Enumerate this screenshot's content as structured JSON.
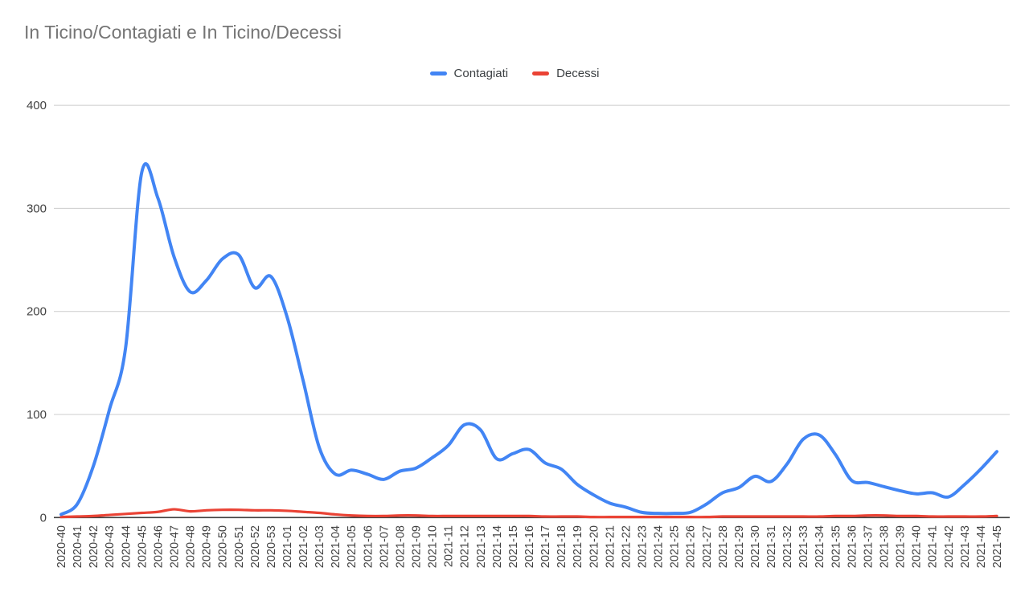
{
  "chart_data": {
    "type": "line",
    "title": "In Ticino/Contagiati e In Ticino/Decessi",
    "xlabel": "",
    "ylabel": "",
    "ylim": [
      0,
      400
    ],
    "yticks": [
      0,
      100,
      200,
      300,
      400
    ],
    "grid": true,
    "legend_position": "top",
    "smooth": true,
    "categories": [
      "2020-40",
      "2020-41",
      "2020-42",
      "2020-43",
      "2020-44",
      "2020-45",
      "2020-46",
      "2020-47",
      "2020-48",
      "2020-49",
      "2020-50",
      "2020-51",
      "2020-52",
      "2020-53",
      "2021-01",
      "2021-02",
      "2021-03",
      "2021-04",
      "2021-05",
      "2021-06",
      "2021-07",
      "2021-08",
      "2021-09",
      "2021-10",
      "2021-11",
      "2021-12",
      "2021-13",
      "2021-14",
      "2021-15",
      "2021-16",
      "2021-17",
      "2021-18",
      "2021-19",
      "2021-20",
      "2021-21",
      "2021-22",
      "2021-23",
      "2021-24",
      "2021-25",
      "2021-26",
      "2021-27",
      "2021-28",
      "2021-29",
      "2021-30",
      "2021-31",
      "2021-32",
      "2021-33",
      "2021-34",
      "2021-35",
      "2021-36",
      "2021-37",
      "2021-38",
      "2021-39",
      "2021-40",
      "2021-41",
      "2021-42",
      "2021-43",
      "2021-44",
      "2021-45"
    ],
    "series": [
      {
        "name": "Contagiati",
        "color": "#4285F4",
        "values": [
          3,
          13,
          50,
          105,
          165,
          335,
          310,
          253,
          219,
          230,
          251,
          255,
          223,
          234,
          195,
          133,
          68,
          42,
          46,
          42,
          37,
          45,
          48,
          58,
          70,
          90,
          85,
          57,
          62,
          66,
          53,
          47,
          32,
          22,
          14,
          10,
          5,
          4,
          4,
          5,
          13,
          24,
          29,
          40,
          35,
          52,
          76,
          80,
          61,
          36,
          34,
          30,
          26,
          23,
          24,
          20,
          32,
          47,
          64
        ]
      },
      {
        "name": "Decessi",
        "color": "#EA4335",
        "values": [
          0.5,
          1,
          1.5,
          2.5,
          3.5,
          4.5,
          5.5,
          8,
          6,
          7,
          7.5,
          7.5,
          7,
          7,
          6.5,
          5.5,
          4.5,
          3,
          2,
          1.5,
          1.5,
          2,
          2,
          1.5,
          1.5,
          1.5,
          1.5,
          1.5,
          1.5,
          1.5,
          1,
          1,
          1,
          0.5,
          0.5,
          0.5,
          0.5,
          0.5,
          0.5,
          0.5,
          0.5,
          1,
          1,
          1,
          1,
          1,
          1,
          1,
          1.5,
          1.5,
          2,
          2,
          1.5,
          1.5,
          1,
          1,
          1,
          1,
          1.5
        ]
      }
    ],
    "colors": {
      "title_text": "#757575",
      "tick_text": "#424242",
      "gridline": "#cccccc",
      "axis_line": "#424242",
      "background": "#ffffff"
    }
  }
}
